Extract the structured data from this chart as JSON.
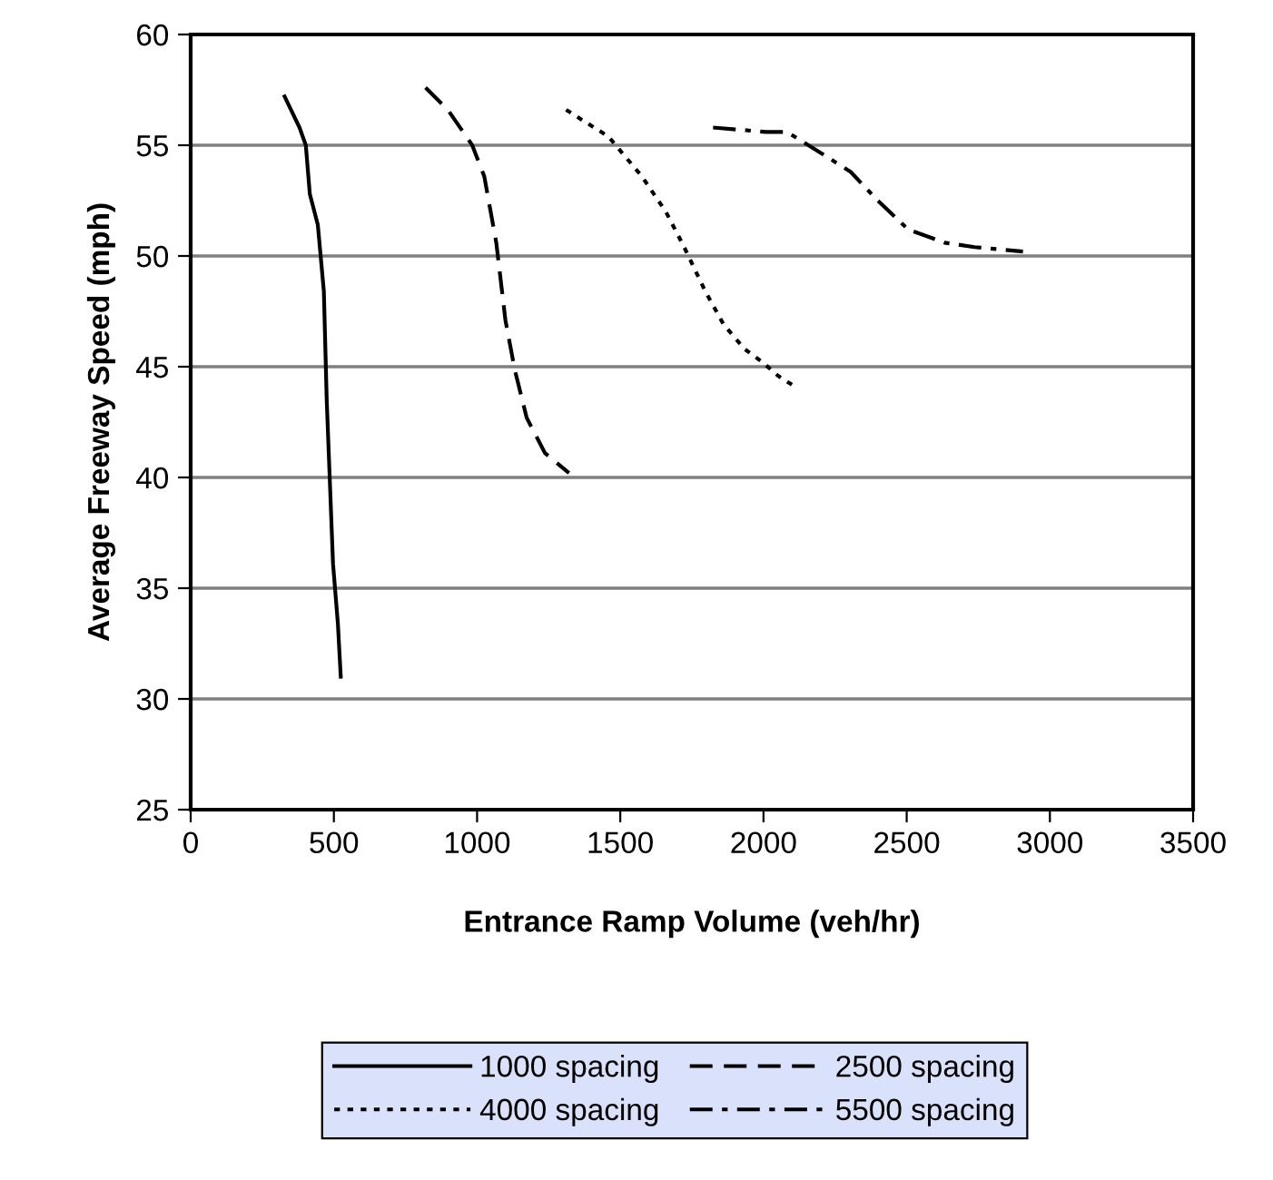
{
  "chart_data": {
    "type": "line",
    "xlabel": "Entrance Ramp Volume (veh/hr)",
    "ylabel": "Average Freeway Speed (mph)",
    "xlim": [
      0,
      3500
    ],
    "xticks": [
      0,
      500,
      1000,
      1500,
      2000,
      2500,
      3000,
      3500
    ],
    "ylim": [
      25,
      60
    ],
    "yticks": [
      25,
      30,
      35,
      40,
      45,
      50,
      55,
      60
    ],
    "grid": "y",
    "legend": "bottom",
    "marker": "none",
    "series": [
      {
        "name": "1000 spacing",
        "color": "#000000",
        "line_style": "solid",
        "x": [
          328,
          380,
          402,
          416,
          444,
          465,
          475,
          497,
          514,
          524
        ],
        "values": [
          57.2,
          55.8,
          55.0,
          52.8,
          51.4,
          48.4,
          43.5,
          36.1,
          33.4,
          31.0
        ]
      },
      {
        "name": "2500 spacing",
        "color": "#000000",
        "line_style": "dashed",
        "x": [
          820,
          898,
          983,
          1025,
          1067,
          1099,
          1131,
          1173,
          1237,
          1321
        ],
        "values": [
          57.6,
          56.6,
          55.0,
          53.6,
          50.6,
          47.1,
          44.9,
          42.7,
          41.1,
          40.2
        ]
      },
      {
        "name": "4000 spacing",
        "color": "#000000",
        "line_style": "dotted",
        "x": [
          1311,
          1384,
          1458,
          1575,
          1659,
          1723,
          1797,
          1861,
          1934,
          1997,
          2050,
          2110
        ],
        "values": [
          56.6,
          56.0,
          55.4,
          53.6,
          52.0,
          50.4,
          48.4,
          46.9,
          45.8,
          45.2,
          44.6,
          44.1
        ]
      },
      {
        "name": "5500 spacing",
        "color": "#000000",
        "line_style": "dashdot",
        "x": [
          1824,
          2008,
          2082,
          2219,
          2304,
          2399,
          2505,
          2632,
          2737,
          2906
        ],
        "values": [
          55.8,
          55.6,
          55.6,
          54.5,
          53.8,
          52.5,
          51.2,
          50.6,
          50.4,
          50.2
        ]
      }
    ]
  }
}
